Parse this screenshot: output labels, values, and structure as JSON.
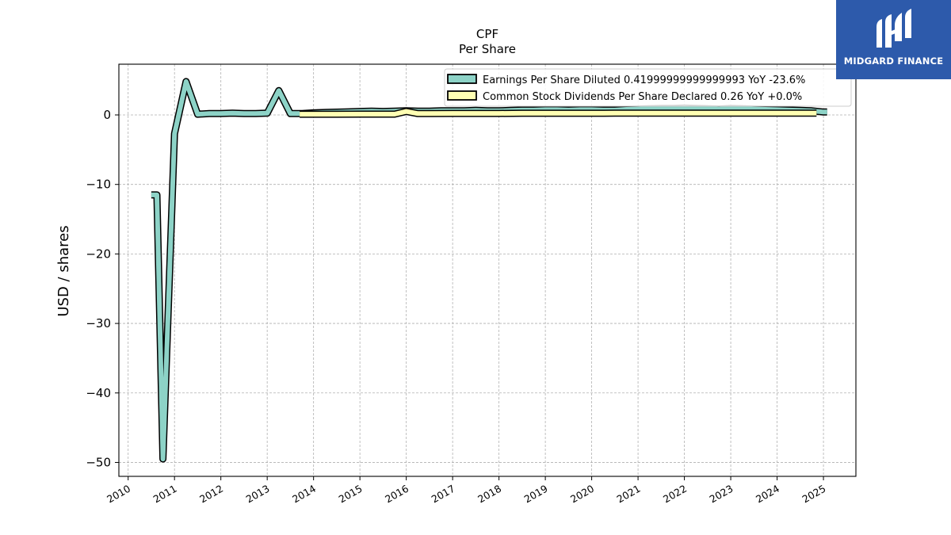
{
  "chart_data": {
    "type": "line",
    "title": "CPF",
    "subtitle": "Per  Share",
    "xlabel": "",
    "ylabel": "USD / shares",
    "xlim": [
      2009.8,
      2025.7
    ],
    "ylim": [
      -52,
      7.3
    ],
    "x_ticks": [
      "2010",
      "2011",
      "2012",
      "2013",
      "2014",
      "2015",
      "2016",
      "2017",
      "2018",
      "2019",
      "2020",
      "2021",
      "2022",
      "2023",
      "2024",
      "2025"
    ],
    "y_ticks": [
      {
        "value": 0,
        "label": "0"
      },
      {
        "value": -10,
        "label": "−10"
      },
      {
        "value": -20,
        "label": "−20"
      },
      {
        "value": -30,
        "label": "−30"
      },
      {
        "value": -40,
        "label": "−40"
      },
      {
        "value": -50,
        "label": "−50"
      }
    ],
    "grid": true,
    "legend_position": "top-right",
    "series": [
      {
        "name": "Earnings Per Share Diluted",
        "legend": "Earnings Per Share Diluted  0.41999999999999993 YoY -23.6%",
        "color": "#8dd3c7",
        "x": [
          2010.5,
          2010.62,
          2010.75,
          2011.0,
          2011.25,
          2011.5,
          2011.75,
          2012.0,
          2012.25,
          2012.5,
          2012.75,
          2013.0,
          2013.25,
          2013.5,
          2013.75,
          2014.0,
          2014.25,
          2014.5,
          2014.75,
          2015.0,
          2015.25,
          2015.5,
          2015.75,
          2016.0,
          2016.25,
          2016.5,
          2016.75,
          2017.0,
          2017.25,
          2017.5,
          2017.75,
          2018.0,
          2018.25,
          2018.5,
          2018.75,
          2019.0,
          2019.25,
          2019.5,
          2019.75,
          2020.0,
          2020.25,
          2020.5,
          2020.75,
          2021.0,
          2021.25,
          2021.5,
          2021.75,
          2022.0,
          2022.25,
          2022.5,
          2022.75,
          2023.0,
          2023.25,
          2023.5,
          2023.75,
          2024.0,
          2024.25,
          2024.5,
          2024.75,
          2025.0,
          2025.08
        ],
        "values": [
          -11.5,
          -11.5,
          -49.5,
          -2.7,
          4.8,
          0.1,
          0.2,
          0.2,
          0.25,
          0.2,
          0.2,
          0.25,
          3.5,
          0.2,
          0.2,
          0.3,
          0.35,
          0.4,
          0.45,
          0.5,
          0.55,
          0.5,
          0.55,
          0.6,
          0.55,
          0.55,
          0.6,
          0.6,
          0.6,
          0.65,
          0.6,
          0.6,
          0.65,
          0.7,
          0.7,
          0.75,
          0.75,
          0.7,
          0.75,
          0.75,
          0.7,
          0.7,
          0.8,
          0.85,
          0.9,
          0.95,
          0.95,
          1.0,
          0.95,
          0.9,
          0.85,
          0.95,
          0.9,
          0.85,
          0.8,
          0.75,
          0.7,
          0.65,
          0.6,
          0.42,
          0.42
        ]
      },
      {
        "name": "Common Stock Dividends Per Share Declared",
        "legend": "Common Stock Dividends Per Share Declared  0.26 YoY +0.0%",
        "color": "#ffffb3",
        "x": [
          2013.7,
          2014.0,
          2014.5,
          2015.0,
          2015.5,
          2015.75,
          2016.0,
          2016.25,
          2016.5,
          2017.0,
          2017.5,
          2018.0,
          2018.5,
          2019.0,
          2019.5,
          2020.0,
          2020.5,
          2021.0,
          2021.5,
          2022.0,
          2022.5,
          2023.0,
          2023.5,
          2024.0,
          2024.5,
          2024.85
        ],
        "values": [
          0.1,
          0.1,
          0.1,
          0.12,
          0.12,
          0.12,
          0.5,
          0.2,
          0.2,
          0.22,
          0.22,
          0.22,
          0.24,
          0.24,
          0.24,
          0.24,
          0.25,
          0.25,
          0.25,
          0.25,
          0.26,
          0.26,
          0.26,
          0.26,
          0.26,
          0.26
        ]
      }
    ]
  },
  "brand": {
    "name": "MIDGARD FINANCE",
    "color": "#2d5aab"
  }
}
